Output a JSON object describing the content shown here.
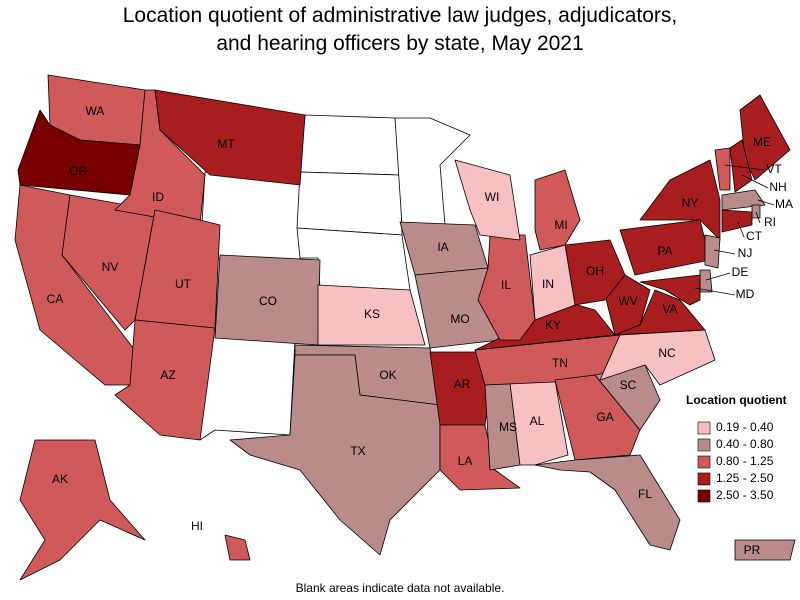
{
  "map": {
    "title": [
      "Location quotient of administrative law judges, adjudicators,",
      "and hearing officers by state, May 2021"
    ],
    "legend": {
      "title": "Location quotient",
      "items": [
        {
          "label": "0.19 - 0.40",
          "color": "#f7c1c4"
        },
        {
          "label": "0.40 - 0.80",
          "color": "#b98b8b"
        },
        {
          "label": "0.80 - 1.25",
          "color": "#d05a5a"
        },
        {
          "label": "1.25 - 2.50",
          "color": "#a81e1e"
        },
        {
          "label": "2.50 - 3.50",
          "color": "#780000"
        }
      ]
    },
    "states": [
      {
        "label": "WA",
        "class": 2
      },
      {
        "label": "OR",
        "class": 4
      },
      {
        "label": "CA",
        "class": 2
      },
      {
        "label": "NV",
        "class": 2
      },
      {
        "label": "ID",
        "class": 2
      },
      {
        "label": "MT",
        "class": 3
      },
      {
        "label": "UT",
        "class": 2
      },
      {
        "label": "AZ",
        "class": 2
      },
      {
        "label": "CO",
        "class": 1
      },
      {
        "label": "KS",
        "class": 0
      },
      {
        "label": "IA",
        "class": 1
      },
      {
        "label": "MO",
        "class": 1
      },
      {
        "label": "OK",
        "class": 1
      },
      {
        "label": "TX",
        "class": 1
      },
      {
        "label": "AR",
        "class": 3
      },
      {
        "label": "LA",
        "class": 2
      },
      {
        "label": "MS",
        "class": 1
      },
      {
        "label": "AL",
        "class": 0
      },
      {
        "label": "TN",
        "class": 2
      },
      {
        "label": "GA",
        "class": 2
      },
      {
        "label": "FL",
        "class": 1
      },
      {
        "label": "SC",
        "class": 1
      },
      {
        "label": "NC",
        "class": 0
      },
      {
        "label": "KY",
        "class": 3
      },
      {
        "label": "WV",
        "class": 3
      },
      {
        "label": "VA",
        "class": 3
      },
      {
        "label": "OH",
        "class": 3
      },
      {
        "label": "IN",
        "class": 0
      },
      {
        "label": "IL",
        "class": 2
      },
      {
        "label": "WI",
        "class": 0
      },
      {
        "label": "MI",
        "class": 2
      },
      {
        "label": "PA",
        "class": 3
      },
      {
        "label": "NY",
        "class": 3
      },
      {
        "label": "ME",
        "class": 3
      },
      {
        "label": "VT",
        "class": 2
      },
      {
        "label": "NH",
        "class": 3
      },
      {
        "label": "MA",
        "class": 1
      },
      {
        "label": "RI",
        "class": 1
      },
      {
        "label": "CT",
        "class": 3
      },
      {
        "label": "NJ",
        "class": 1
      },
      {
        "label": "DE",
        "class": 1
      },
      {
        "label": "MD",
        "class": 3
      },
      {
        "label": "AK",
        "class": 2
      },
      {
        "label": "HI",
        "class": 2
      },
      {
        "label": "PR",
        "class": 1
      }
    ],
    "footnote": "Blank areas indicate data not available."
  }
}
